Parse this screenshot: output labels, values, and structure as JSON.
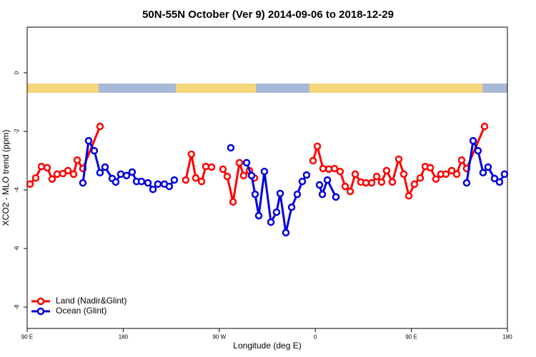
{
  "chart_data": {
    "type": "line",
    "title": "50N-55N October (Ver 9)   2014-09-06 to 2018-12-29",
    "x_label": "Longitude (deg E)",
    "y_label": "XCO2 - MLO trend (ppm)",
    "xlim": [
      90,
      540
    ],
    "ylim": [
      -8.73,
      1.56
    ],
    "xticks": [
      {
        "value": 90,
        "label": "90 E"
      },
      {
        "value": 180,
        "label": "180"
      },
      {
        "value": 270,
        "label": "90 W"
      },
      {
        "value": 360,
        "label": "0"
      },
      {
        "value": 450,
        "label": "90 E"
      },
      {
        "value": 540,
        "label": "180"
      }
    ],
    "yticks": [
      0,
      -2,
      -4,
      -6,
      -8
    ],
    "legend": "bottom-left",
    "series": [
      {
        "name": "Land (Nadir&Glint)",
        "color": "#ff0000",
        "x": [
          92.7,
          98,
          103.4,
          108.8,
          113.4,
          118.1,
          123.5,
          128.2,
          133.5,
          136.9,
          142.2,
          158.3,
          null,
          238.6,
          243.9,
          248,
          253.4,
          257.4,
          262.8,
          null,
          273.5,
          277.5,
          282.9,
          288.9,
          292.9,
          298.3,
          302.9,
          null,
          357.9,
          361.9,
          367.2,
          372.6,
          378,
          383.3,
          388,
          392.7,
          397.4,
          402.7,
          407.4,
          412.8,
          417.5,
          422.1,
          426.8,
          432.2,
          438.2,
          442.9,
          447.6,
          452.9,
          458.3,
          463,
          467.7,
          473,
          477.7,
          482.4,
          487.8,
          492.5,
          497.1,
          501.8,
          518.6
        ],
        "values": [
          -3.8,
          -3.59,
          -3.2,
          -3.24,
          -3.63,
          -3.46,
          -3.44,
          -3.34,
          -3.46,
          -2.98,
          -3.27,
          -1.83,
          null,
          -3.66,
          -2.78,
          -3.59,
          -3.71,
          -3.2,
          -3.22,
          null,
          -3.29,
          -3.54,
          -4.41,
          -3.07,
          -3.51,
          -3.34,
          -3.59,
          null,
          -3.0,
          -2.51,
          -3.27,
          -3.29,
          -3.27,
          -3.37,
          -3.88,
          -4.05,
          -3.46,
          -3.73,
          -3.76,
          -3.76,
          -3.54,
          -3.73,
          -3.34,
          -3.73,
          -2.95,
          -3.46,
          -4.2,
          -3.8,
          -3.59,
          -3.2,
          -3.24,
          -3.63,
          -3.46,
          -3.46,
          -3.34,
          -3.46,
          -2.98,
          -3.27,
          -1.83
        ]
      },
      {
        "name": "Ocean (Glint)",
        "color": "#0000dd",
        "x": [
          142.2,
          147.6,
          152.9,
          158.3,
          163,
          169.7,
          173,
          177.7,
          183.1,
          188.4,
          192.5,
          197.1,
          203.2,
          207.9,
          212.5,
          218.6,
          223.2,
          227.9,
          null,
          280.8,
          null,
          295.6,
          300.3,
          303.6,
          307,
          312.3,
          318.4,
          323.7,
          327.1,
          332.4,
          337.8,
          343.1,
          347.8,
          351.8,
          null,
          363.9,
          366.6,
          371.3,
          379.3,
          null,
          501.8,
          507.9,
          512.5,
          517.2,
          521.9,
          527.9,
          532.6,
          537.3
        ],
        "values": [
          -3.76,
          -2.32,
          -2.66,
          -3.41,
          -3.22,
          -3.61,
          -3.73,
          -3.46,
          -3.51,
          -3.39,
          -3.71,
          -3.71,
          -3.76,
          -3.98,
          -3.8,
          -3.8,
          -3.88,
          -3.66,
          null,
          -2.56,
          null,
          -3.07,
          -3.51,
          -4.15,
          -4.88,
          -3.37,
          -5.1,
          -4.76,
          -4.12,
          -5.46,
          -4.59,
          -4.15,
          -3.71,
          -3.49,
          null,
          -3.83,
          -4.15,
          -3.66,
          -4.24,
          null,
          -3.76,
          -2.32,
          -2.66,
          -3.41,
          -3.22,
          -3.61,
          -3.73,
          -3.46
        ]
      }
    ]
  }
}
